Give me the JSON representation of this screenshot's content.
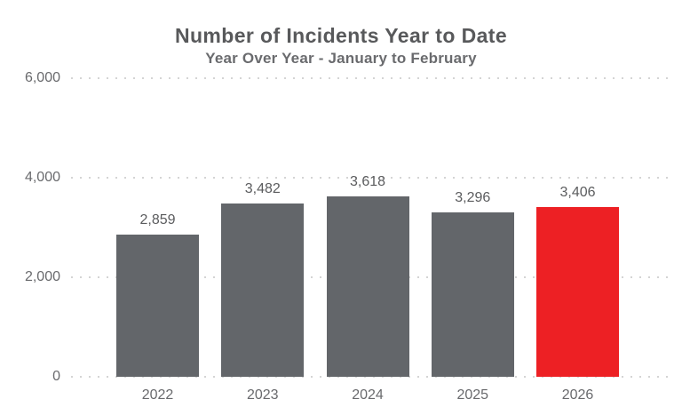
{
  "chart_data": {
    "type": "bar",
    "title": "Number of Incidents Year to Date",
    "subtitle": "Year Over Year - January to February",
    "categories": [
      "2022",
      "2023",
      "2024",
      "2025",
      "2026"
    ],
    "values": [
      2859,
      3482,
      3618,
      3296,
      3406
    ],
    "value_labels": [
      "2,859",
      "3,482",
      "3,618",
      "3,296",
      "3,406"
    ],
    "xlabel": "",
    "ylabel": "",
    "ylim": [
      0,
      6000
    ],
    "y_ticks": [
      {
        "value": 6000,
        "label": "6,000"
      },
      {
        "value": 4000,
        "label": "4,000"
      },
      {
        "value": 2000,
        "label": "2,000"
      },
      {
        "value": 0,
        "label": "0"
      }
    ],
    "grid": "horizontal-dotted",
    "legend": "none",
    "colors": {
      "bar_default": "#63666A",
      "bar_highlight": "#ED2024",
      "title_text": "#58595B",
      "label_text": "#696A6D",
      "gridline": "#D4D4D4"
    },
    "highlight_category": "2026"
  }
}
